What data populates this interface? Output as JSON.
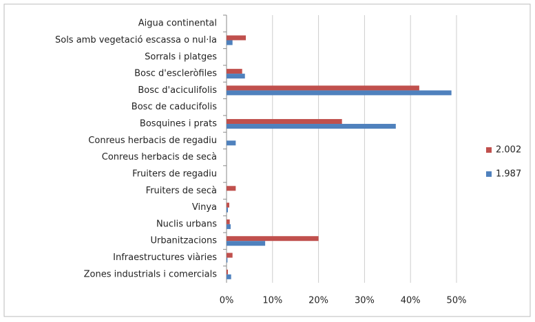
{
  "chart_data": {
    "type": "barh",
    "categories": [
      "Aigua continental",
      "Sols amb vegetació escassa o nul·la",
      "Sorrals i platges",
      "Bosc d'escleròfiles",
      "Bosc d'aciculifolis",
      "Bosc de caducifolis",
      "Bosquines i prats",
      "Conreus herbacis de regadiu",
      "Conreus herbacis de secà",
      "Fruiters de regadiu",
      "Fruiters de secà",
      "Vinya",
      "Nuclis urbans",
      "Urbanitzacions",
      "Infraestructures viàries",
      "Zones industrials i comercials"
    ],
    "series": [
      {
        "name": "2.002",
        "color": "#c0504d",
        "values": [
          0,
          4.2,
          0,
          3.4,
          41.9,
          0,
          25.1,
          0,
          0,
          0,
          2.0,
          0.6,
          0.7,
          20.0,
          1.3,
          0.3
        ]
      },
      {
        "name": "1.987",
        "color": "#4f81bd",
        "values": [
          0,
          1.3,
          0,
          4.0,
          48.9,
          0,
          36.8,
          2.0,
          0,
          0,
          0,
          0.3,
          0.9,
          8.4,
          0.2,
          1.0
        ]
      }
    ],
    "xlim": [
      0,
      50
    ],
    "xticks": [
      {
        "value": 0,
        "label": "0%"
      },
      {
        "value": 10,
        "label": "10%"
      },
      {
        "value": 20,
        "label": "20%"
      },
      {
        "value": 30,
        "label": "30%"
      },
      {
        "value": 40,
        "label": "40%"
      },
      {
        "value": 50,
        "label": "50%"
      }
    ],
    "grid": true,
    "legend": "right"
  }
}
